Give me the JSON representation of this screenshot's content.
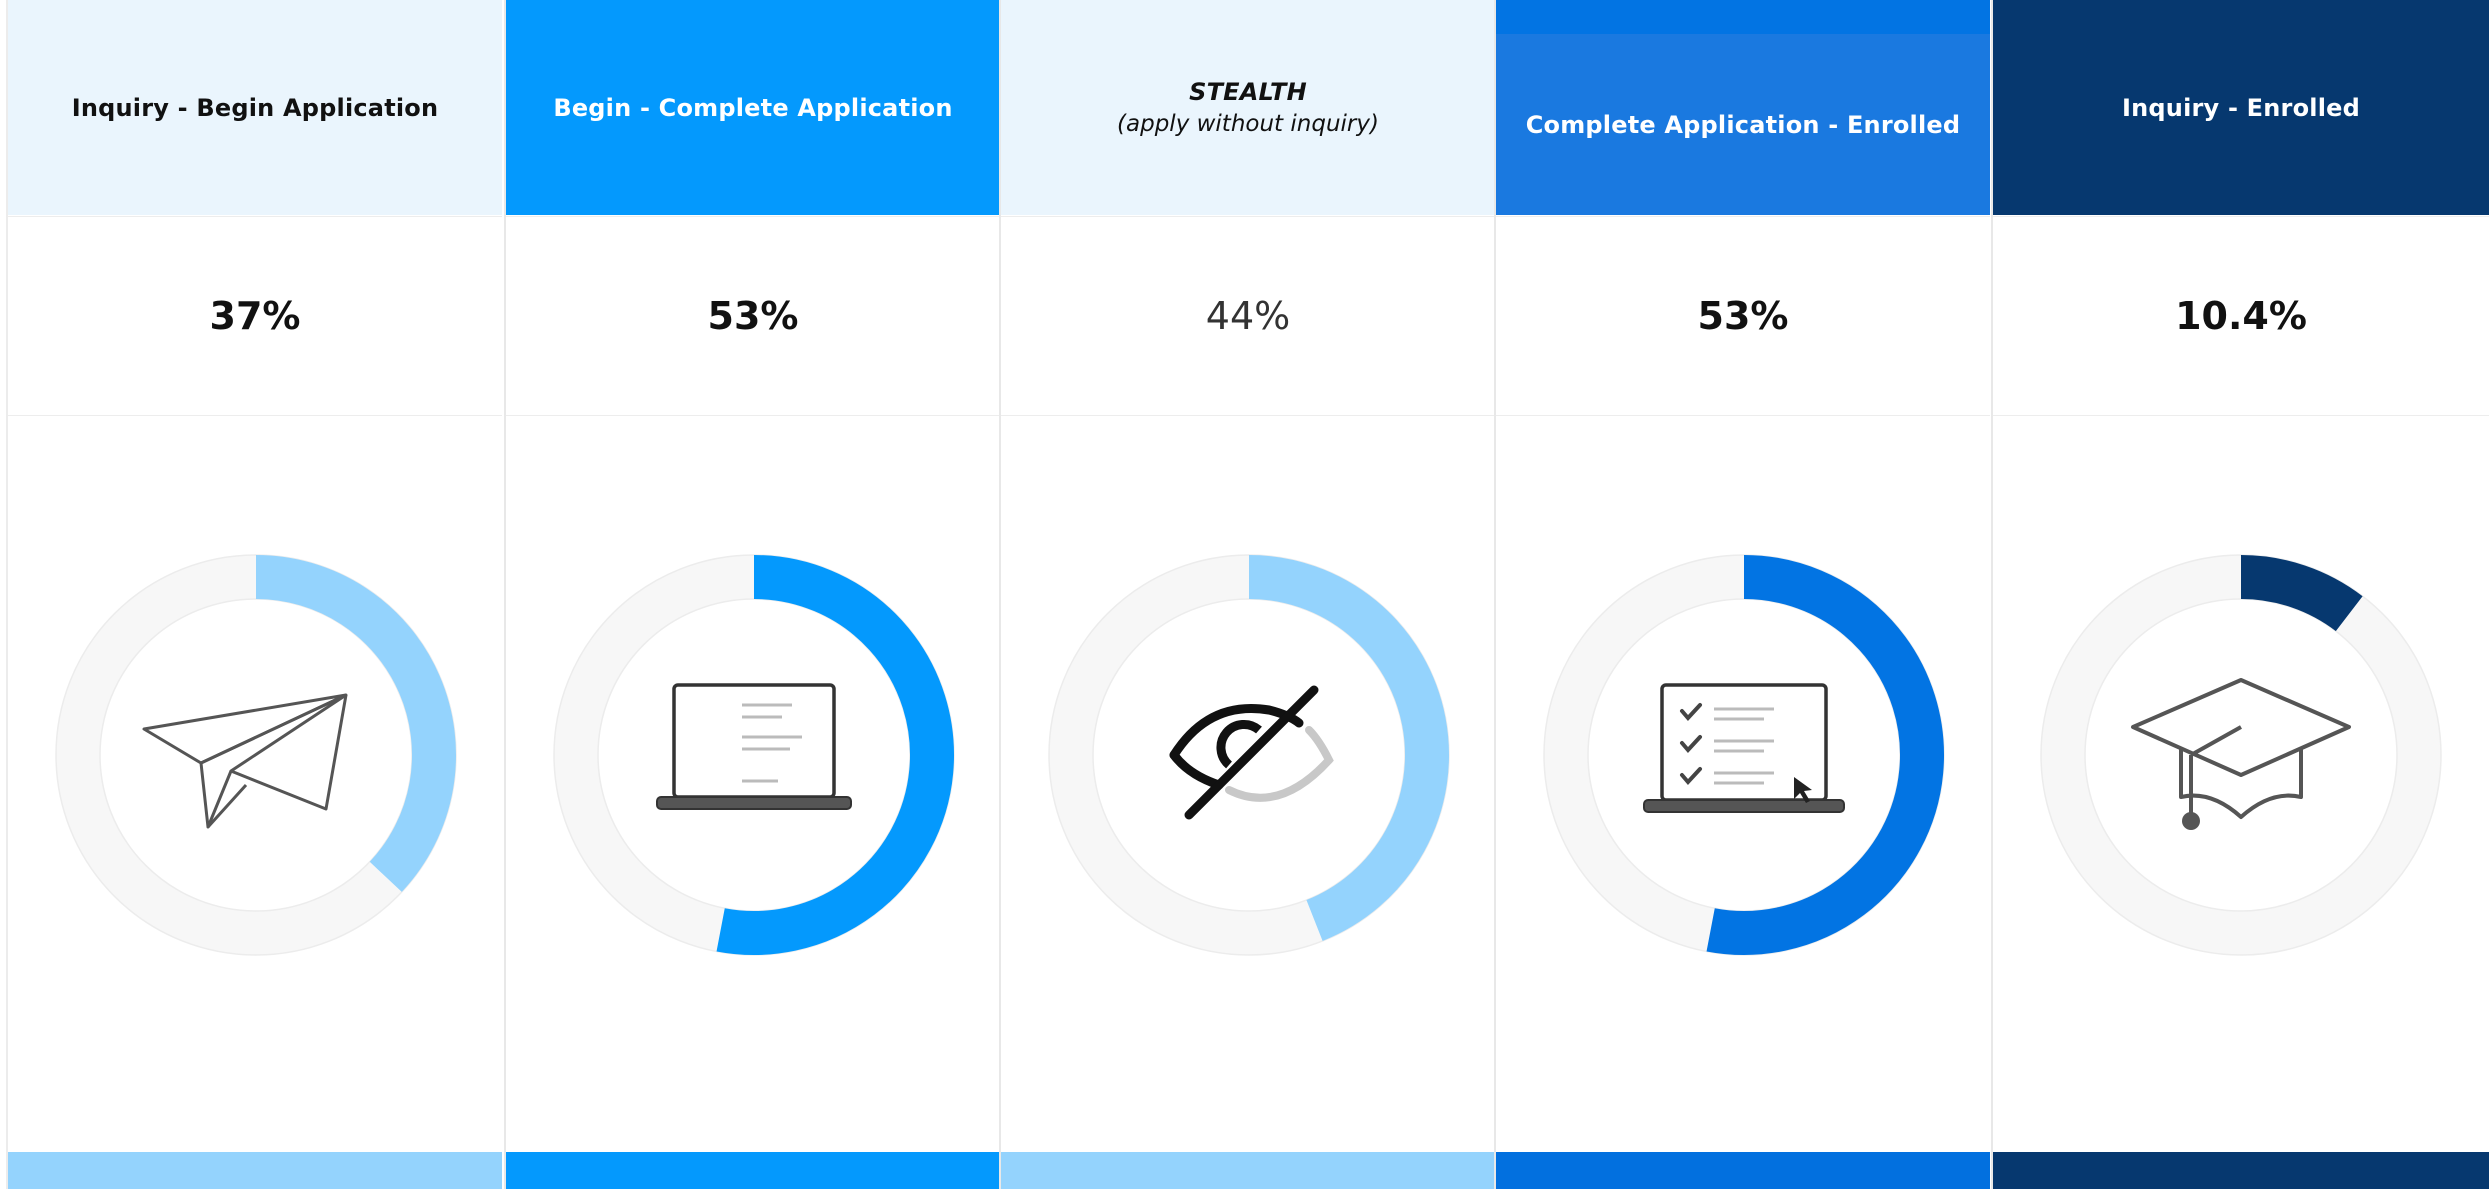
{
  "chart_data": {
    "type": "donut",
    "title": "",
    "columns": [
      {
        "header": "Inquiry - Begin Application",
        "subheader": "",
        "value": 37,
        "label": "37%",
        "header_bg": "#eaf5fd",
        "header_text": "#111111",
        "arc_color": "#94d3fd",
        "footer_color": "#94d3fd",
        "icon": "paper-plane-icon",
        "value_weight": "bold"
      },
      {
        "header": "Begin - Complete Application",
        "subheader": "",
        "value": 53,
        "label": "53%",
        "header_bg": "#0499fd",
        "header_text": "#ffffff",
        "arc_color": "#0499fd",
        "footer_color": "#0499fd",
        "icon": "laptop-icon",
        "value_weight": "bold"
      },
      {
        "header": "STEALTH",
        "subheader": "(apply without inquiry)",
        "value": 44,
        "label": "44%",
        "header_bg": "#eaf5fd",
        "header_text": "#111111",
        "arc_color": "#94d3fd",
        "footer_color": "#94d3fd",
        "icon": "eye-slash-icon",
        "value_weight": "light"
      },
      {
        "header": "Complete Application - Enrolled",
        "subheader": "",
        "value": 53,
        "label": "53%",
        "header_bg": "#1a79e0",
        "header_text": "#ffffff",
        "header_band": "#0274e3",
        "arc_color": "#0274e3",
        "footer_color": "#0270df",
        "icon": "checklist-laptop-icon",
        "value_weight": "bold"
      },
      {
        "header": "Inquiry - Enrolled",
        "subheader": "",
        "value": 10.4,
        "label": "10.4%",
        "header_bg": "#06386f",
        "header_text": "#ffffff",
        "arc_color": "#06386f",
        "footer_color": "#06386f",
        "icon": "graduation-cap-icon",
        "value_weight": "bold"
      }
    ],
    "track_color": "#f7f7f7",
    "track_outline": "#ececec"
  }
}
